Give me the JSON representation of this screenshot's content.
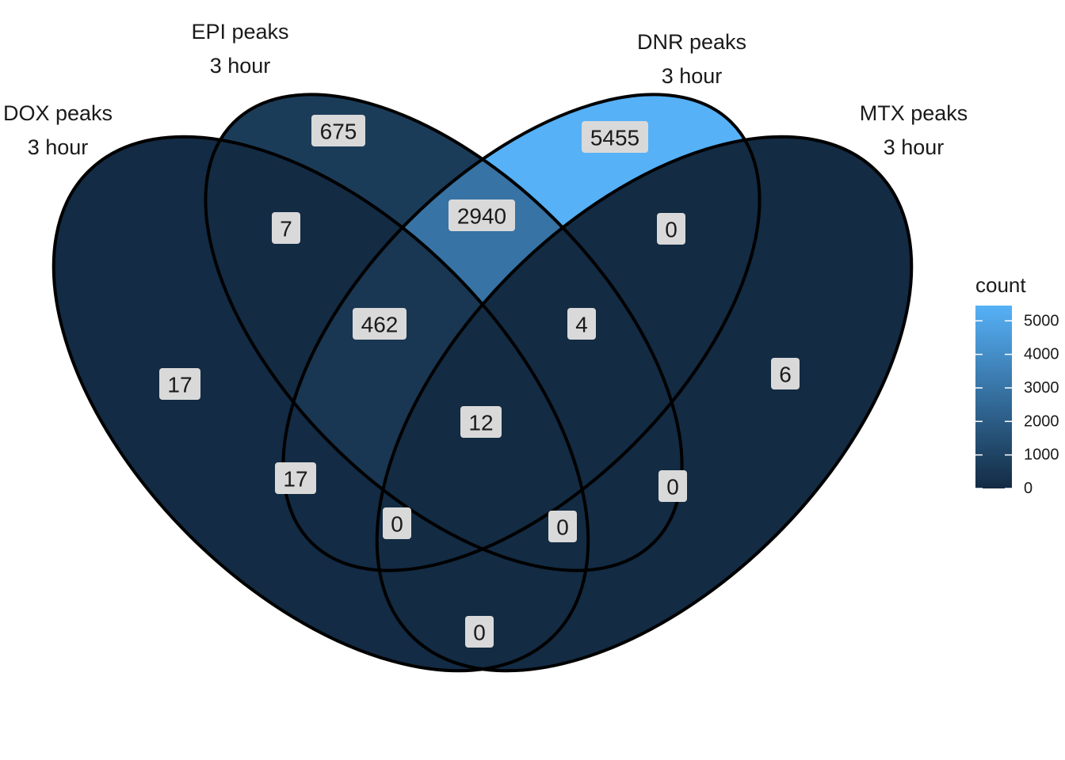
{
  "chart_data": {
    "type": "venn",
    "sets": [
      {
        "key": "DOX",
        "name": "DOX peaks",
        "subtitle": "3 hour"
      },
      {
        "key": "EPI",
        "name": "EPI peaks",
        "subtitle": "3 hour"
      },
      {
        "key": "DNR",
        "name": "DNR peaks",
        "subtitle": "3 hour"
      },
      {
        "key": "MTX",
        "name": "MTX peaks",
        "subtitle": "3 hour"
      }
    ],
    "regions": [
      {
        "sets": [
          "DOX"
        ],
        "count": 17
      },
      {
        "sets": [
          "EPI"
        ],
        "count": 675
      },
      {
        "sets": [
          "DNR"
        ],
        "count": 5455
      },
      {
        "sets": [
          "MTX"
        ],
        "count": 6
      },
      {
        "sets": [
          "DOX",
          "EPI"
        ],
        "count": 7
      },
      {
        "sets": [
          "EPI",
          "DNR"
        ],
        "count": 2940
      },
      {
        "sets": [
          "DNR",
          "MTX"
        ],
        "count": 0
      },
      {
        "sets": [
          "DOX",
          "DNR"
        ],
        "count": 17
      },
      {
        "sets": [
          "EPI",
          "MTX"
        ],
        "count": 0
      },
      {
        "sets": [
          "DOX",
          "MTX"
        ],
        "count": 0
      },
      {
        "sets": [
          "DOX",
          "EPI",
          "DNR"
        ],
        "count": 462
      },
      {
        "sets": [
          "EPI",
          "DNR",
          "MTX"
        ],
        "count": 4
      },
      {
        "sets": [
          "DOX",
          "DNR",
          "MTX"
        ],
        "count": 0
      },
      {
        "sets": [
          "DOX",
          "EPI",
          "MTX"
        ],
        "count": 0
      },
      {
        "sets": [
          "DOX",
          "EPI",
          "DNR",
          "MTX"
        ],
        "count": 12
      }
    ],
    "legend": {
      "title": "count",
      "ticks": [
        0,
        1000,
        2000,
        3000,
        4000,
        5000
      ],
      "range": [
        0,
        5455
      ],
      "color_low": "#132B43",
      "color_high": "#56B1F7",
      "placement": "right"
    }
  }
}
